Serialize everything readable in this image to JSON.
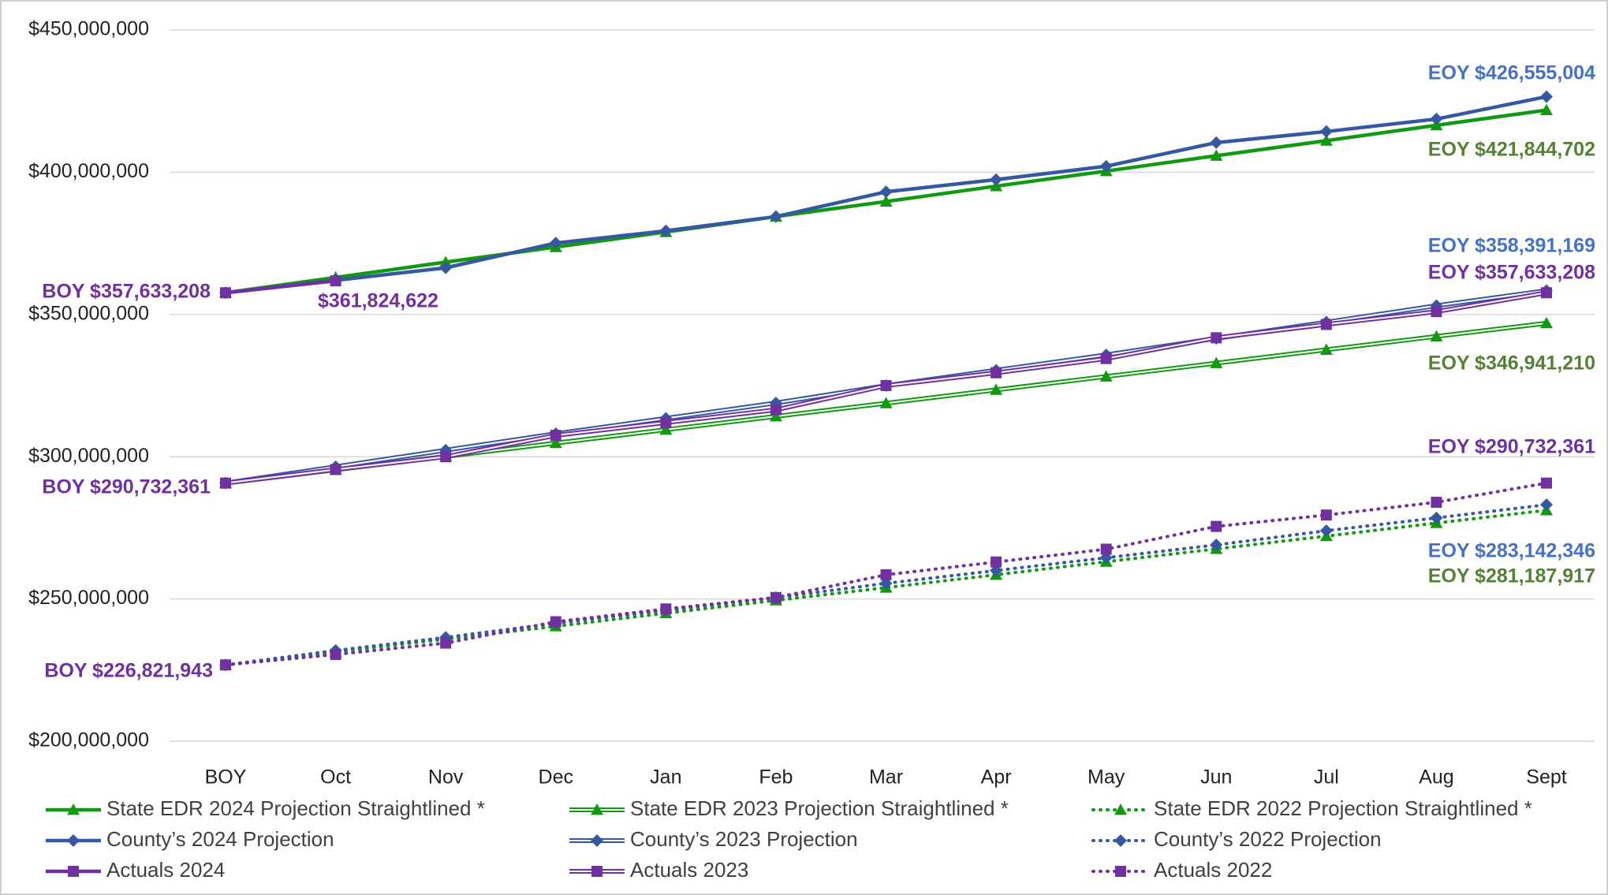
{
  "chart_data": {
    "type": "line",
    "categories": [
      "BOY",
      "Oct",
      "Nov",
      "Dec",
      "Jan",
      "Feb",
      "Mar",
      "Apr",
      "May",
      "Jun",
      "Jul",
      "Aug",
      "Sept"
    ],
    "ylim": [
      200000000,
      450000000
    ],
    "yticks": [
      {
        "value": 200000000,
        "label": "$200,000,000"
      },
      {
        "value": 250000000,
        "label": "$250,000,000"
      },
      {
        "value": 300000000,
        "label": "$300,000,000"
      },
      {
        "value": 350000000,
        "label": "$350,000,000"
      },
      {
        "value": 400000000,
        "label": "$400,000,000"
      },
      {
        "value": 450000000,
        "label": "$450,000,000"
      }
    ],
    "grid": true,
    "legend": "bottom",
    "series": [
      {
        "name": "State EDR 2024 Projection Straightlined *",
        "color": "#119a11",
        "style": "solid",
        "marker": "triangle",
        "values": [
          357633208,
          363000000,
          368400000,
          373700000,
          379000000,
          384400000,
          389700000,
          395100000,
          400400000,
          405800000,
          411100000,
          416500000,
          421844702
        ]
      },
      {
        "name": "State EDR 2023 Projection Straightlined *",
        "color": "#119a11",
        "style": "double",
        "marker": "triangle",
        "values": [
          290732361,
          295400000,
          300100000,
          304800000,
          309500000,
          314200000,
          318800000,
          323500000,
          328200000,
          332900000,
          337600000,
          342300000,
          346941210
        ]
      },
      {
        "name": "State EDR 2022 Projection Straightlined *",
        "color": "#119a11",
        "style": "dotted",
        "marker": "triangle",
        "values": [
          226821943,
          231400000,
          235900000,
          240400000,
          245000000,
          249500000,
          254000000,
          258500000,
          263100000,
          267600000,
          272100000,
          276700000,
          281187917
        ]
      },
      {
        "name": "County’s 2024 Projection",
        "color": "#3558a0",
        "style": "solid",
        "marker": "diamond",
        "values": [
          357633208,
          362000000,
          366400000,
          375100000,
          379400000,
          384400000,
          393100000,
          397400000,
          402100000,
          410400000,
          414300000,
          418700000,
          426555004
        ]
      },
      {
        "name": "County’s 2023 Projection",
        "color": "#3558a0",
        "style": "double",
        "marker": "diamond",
        "values": [
          290732361,
          296500000,
          302300000,
          308100000,
          313500000,
          318900000,
          325000000,
          330400000,
          335800000,
          341600000,
          347300000,
          353100000,
          358391169
        ]
      },
      {
        "name": "County’s 2022 Projection",
        "color": "#3558a0",
        "style": "dotted",
        "marker": "diamond",
        "values": [
          226821943,
          231900000,
          236500000,
          241500000,
          246000000,
          250500000,
          255500000,
          260000000,
          264500000,
          269000000,
          274000000,
          278500000,
          283142346
        ]
      },
      {
        "name": "Actuals 2024",
        "color": "#7030a0",
        "style": "solid",
        "marker": "square",
        "values": [
          357633208,
          361824622,
          null,
          null,
          null,
          null,
          null,
          null,
          null,
          null,
          null,
          null,
          null
        ]
      },
      {
        "name": "Actuals 2023",
        "color": "#7030a0",
        "style": "double",
        "marker": "square",
        "values": [
          290732361,
          295500000,
          300000000,
          307500000,
          312000000,
          316500000,
          325000000,
          329500000,
          334500000,
          341800000,
          346500000,
          351000000,
          357633208
        ]
      },
      {
        "name": "Actuals 2022",
        "color": "#7030a0",
        "style": "dotted",
        "marker": "square",
        "values": [
          226821943,
          230500000,
          234500000,
          242000000,
          246500000,
          250500000,
          258500000,
          263000000,
          267500000,
          275500000,
          279500000,
          284000000,
          290732361
        ]
      }
    ],
    "annotations": [
      {
        "text": "EOY $426,555,004",
        "color": "#4472c4"
      },
      {
        "text": "EOY $421,844,702",
        "color": "#548235"
      },
      {
        "text": "EOY $358,391,169",
        "color": "#4472c4"
      },
      {
        "text": "EOY $357,633,208",
        "color": "#7030a0"
      },
      {
        "text": "EOY $346,941,210",
        "color": "#548235"
      },
      {
        "text": "EOY $290,732,361",
        "color": "#7030a0"
      },
      {
        "text": "EOY $283,142,346",
        "color": "#4472c4"
      },
      {
        "text": "EOY $281,187,917",
        "color": "#548235"
      },
      {
        "text": "BOY $357,633,208",
        "color": "#7030a0"
      },
      {
        "text": "$361,824,622",
        "color": "#7030a0"
      },
      {
        "text": "BOY $290,732,361",
        "color": "#7030a0"
      },
      {
        "text": "BOY $226,821,943",
        "color": "#7030a0"
      }
    ]
  }
}
